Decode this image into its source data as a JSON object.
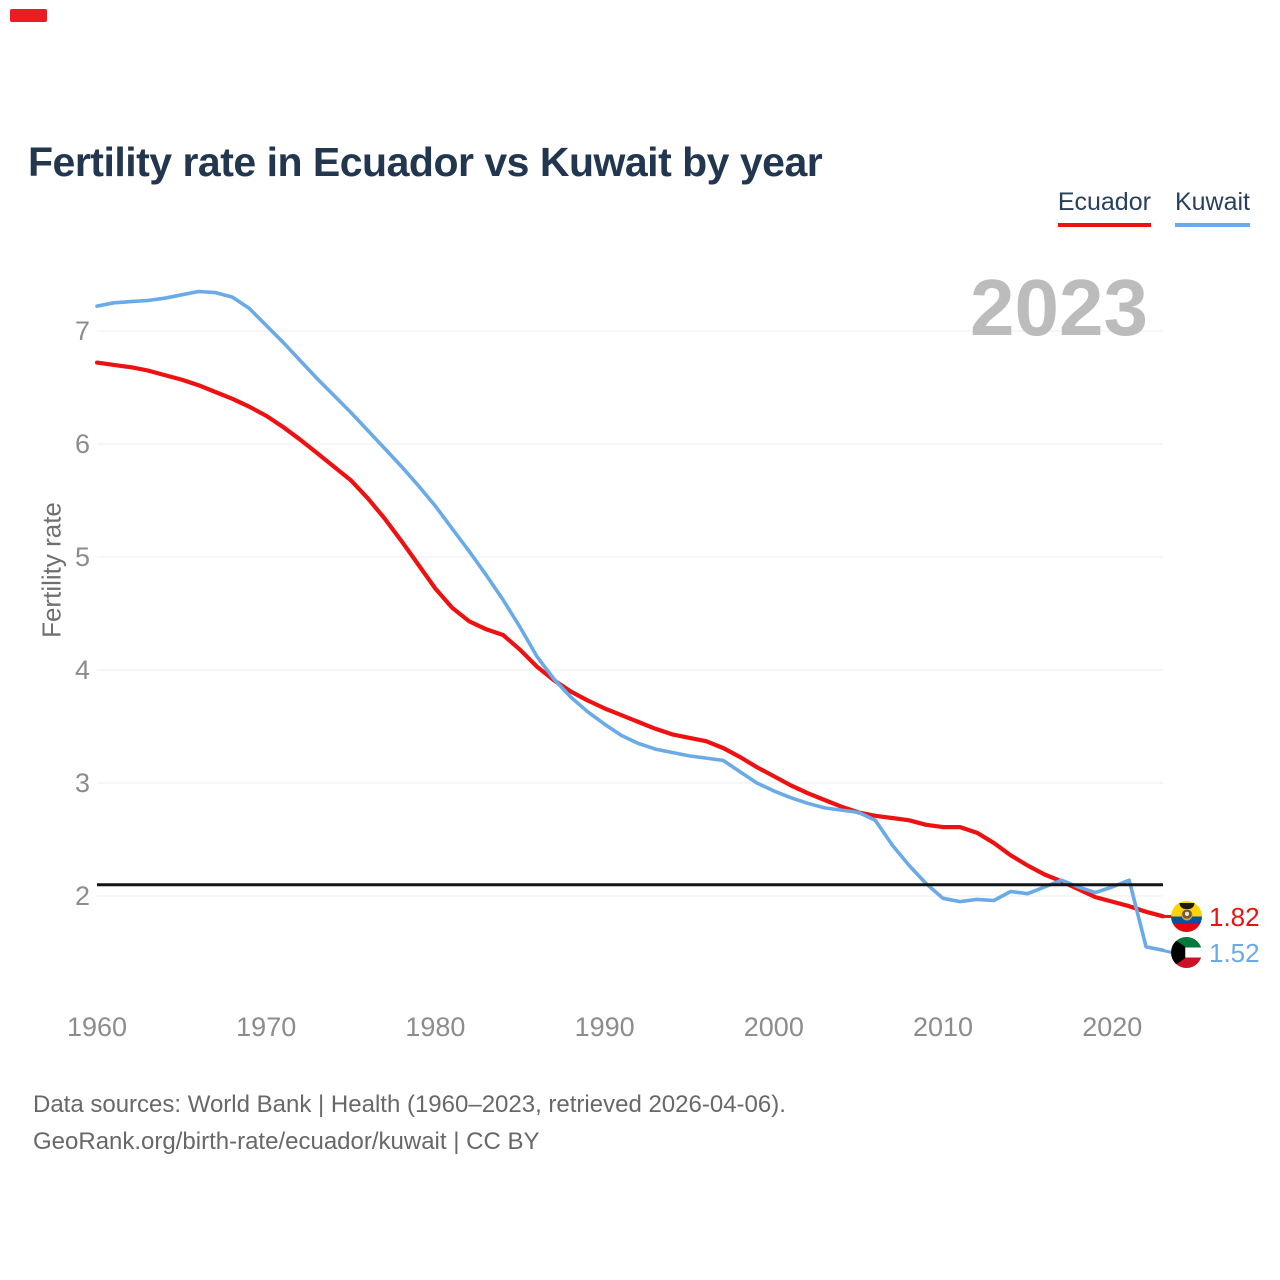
{
  "corner_marker": {
    "color": "#ec1c24"
  },
  "title": "Fertility rate in Ecuador vs Kuwait by year",
  "watermark_year": "2023",
  "legend": {
    "items": [
      {
        "label": "Ecuador",
        "color": "#ee1111"
      },
      {
        "label": "Kuwait",
        "color": "#6aaae6"
      }
    ]
  },
  "end_labels": [
    {
      "country": "Ecuador",
      "value": "1.82",
      "color": "#ee1111",
      "flag": "ecuador-flag-icon"
    },
    {
      "country": "Kuwait",
      "value": "1.52",
      "color": "#6aaae6",
      "flag": "kuwait-flag-icon"
    }
  ],
  "footer": {
    "line1": "Data sources: World Bank | Health (1960–2023, retrieved 2026-04-06).",
    "line2": "GeoRank.org/birth-rate/ecuador/kuwait | CC BY"
  },
  "chart_data": {
    "type": "line",
    "title": "Fertility rate in Ecuador vs Kuwait by year",
    "xlabel": "",
    "ylabel": "Fertility rate",
    "x_ticks": [
      1960,
      1970,
      1980,
      1990,
      2000,
      2010,
      2020
    ],
    "y_ticks": [
      2,
      3,
      4,
      5,
      6,
      7
    ],
    "xlim": [
      1960,
      2023
    ],
    "ylim": [
      1.3,
      7.6
    ],
    "grid": true,
    "legend_position": "top-right",
    "reference_line": {
      "value": 2.1,
      "color": "#141414"
    },
    "years": [
      1960,
      1961,
      1962,
      1963,
      1964,
      1965,
      1966,
      1967,
      1968,
      1969,
      1970,
      1971,
      1972,
      1973,
      1974,
      1975,
      1976,
      1977,
      1978,
      1979,
      1980,
      1981,
      1982,
      1983,
      1984,
      1985,
      1986,
      1987,
      1988,
      1989,
      1990,
      1991,
      1992,
      1993,
      1994,
      1995,
      1996,
      1997,
      1998,
      1999,
      2000,
      2001,
      2002,
      2003,
      2004,
      2005,
      2006,
      2007,
      2008,
      2009,
      2010,
      2011,
      2012,
      2013,
      2014,
      2015,
      2016,
      2017,
      2018,
      2019,
      2020,
      2021,
      2022,
      2023
    ],
    "series": [
      {
        "name": "Ecuador",
        "color": "#ee1111",
        "end_value": 1.82,
        "values": [
          6.72,
          6.7,
          6.68,
          6.65,
          6.61,
          6.57,
          6.52,
          6.46,
          6.4,
          6.33,
          6.25,
          6.15,
          6.04,
          5.92,
          5.8,
          5.68,
          5.52,
          5.34,
          5.14,
          4.93,
          4.72,
          4.55,
          4.43,
          4.36,
          4.31,
          4.18,
          4.03,
          3.91,
          3.81,
          3.73,
          3.66,
          3.6,
          3.54,
          3.48,
          3.43,
          3.4,
          3.37,
          3.31,
          3.23,
          3.14,
          3.06,
          2.98,
          2.91,
          2.85,
          2.79,
          2.74,
          2.71,
          2.69,
          2.67,
          2.63,
          2.61,
          2.61,
          2.56,
          2.47,
          2.36,
          2.27,
          2.19,
          2.13,
          2.06,
          1.99,
          1.95,
          1.91,
          1.86,
          1.82
        ]
      },
      {
        "name": "Kuwait",
        "color": "#6aaae6",
        "end_value": 1.52,
        "values": [
          7.22,
          7.25,
          7.26,
          7.27,
          7.29,
          7.32,
          7.35,
          7.34,
          7.3,
          7.2,
          7.05,
          6.9,
          6.74,
          6.58,
          6.43,
          6.28,
          6.12,
          5.96,
          5.8,
          5.63,
          5.45,
          5.25,
          5.05,
          4.84,
          4.62,
          4.38,
          4.12,
          3.92,
          3.76,
          3.63,
          3.52,
          3.42,
          3.35,
          3.3,
          3.27,
          3.24,
          3.22,
          3.2,
          3.1,
          3.0,
          2.93,
          2.87,
          2.82,
          2.78,
          2.76,
          2.74,
          2.67,
          2.45,
          2.27,
          2.11,
          1.98,
          1.95,
          1.97,
          1.96,
          2.04,
          2.02,
          2.08,
          2.14,
          2.08,
          2.03,
          2.08,
          2.14,
          1.55,
          1.52
        ]
      }
    ]
  }
}
